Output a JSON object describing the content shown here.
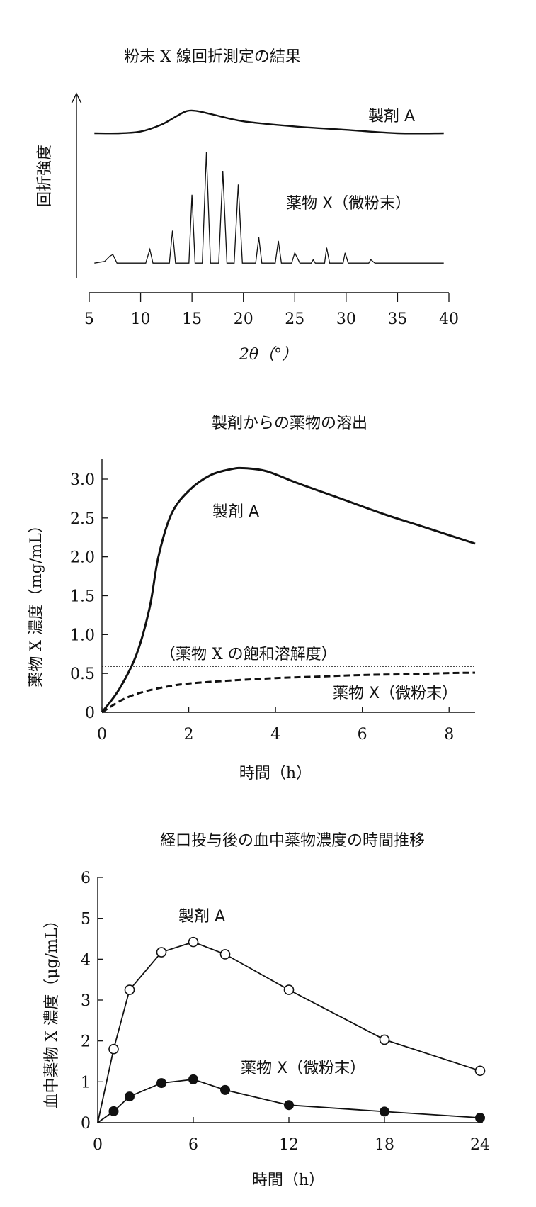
{
  "chart_data": [
    {
      "type": "line",
      "title": "粉末 X 線回折測定の結果",
      "xlabel": "2θ（°）",
      "ylabel": "回折強度",
      "xlim": [
        5,
        40
      ],
      "xticks": [
        "5",
        "10",
        "15",
        "20",
        "25",
        "30",
        "35",
        "40"
      ],
      "yticks": [],
      "y_axis_arrow": true,
      "grid": false,
      "series": [
        {
          "name": "製剤 A",
          "x": [
            5.5,
            8,
            10,
            12,
            13.5,
            14.5,
            15.5,
            17,
            20,
            25,
            30,
            35,
            39.5
          ],
          "y": [
            0.78,
            0.78,
            0.79,
            0.83,
            0.88,
            0.91,
            0.91,
            0.89,
            0.85,
            0.82,
            0.8,
            0.78,
            0.78
          ]
        },
        {
          "name": "薬物 X（微粉末）",
          "x": [
            5.5,
            6.5,
            7,
            7.3,
            7.7,
            10.5,
            10.9,
            11.2,
            12.8,
            13.1,
            13.4,
            14.7,
            15.0,
            15.3,
            16.0,
            16.4,
            16.8,
            17.6,
            18.0,
            18.4,
            19.1,
            19.5,
            19.9,
            21.2,
            21.5,
            21.8,
            23.1,
            23.4,
            23.7,
            24.7,
            25.0,
            25.5,
            26.6,
            26.8,
            27.0,
            27.9,
            28.1,
            28.4,
            29.7,
            29.9,
            30.2,
            32.2,
            32.4,
            32.8,
            34.6,
            34.8,
            35.0,
            39.5
          ],
          "y": [
            0.02,
            0.03,
            0.06,
            0.07,
            0.02,
            0.02,
            0.1,
            0.02,
            0.02,
            0.21,
            0.02,
            0.02,
            0.42,
            0.02,
            0.02,
            0.67,
            0.02,
            0.02,
            0.56,
            0.02,
            0.02,
            0.48,
            0.02,
            0.02,
            0.17,
            0.02,
            0.02,
            0.15,
            0.02,
            0.02,
            0.08,
            0.02,
            0.02,
            0.04,
            0.02,
            0.02,
            0.11,
            0.02,
            0.02,
            0.08,
            0.02,
            0.02,
            0.04,
            0.02,
            0.02,
            0.02,
            0.02,
            0.02
          ]
        }
      ]
    },
    {
      "type": "line",
      "title": "製剤からの薬物の溶出",
      "xlabel": "時間（h）",
      "ylabel": "薬物 X 濃度（mg/mL）",
      "xlim": [
        0,
        8.6
      ],
      "ylim": [
        0,
        3.3
      ],
      "xticks": [
        "0",
        "2",
        "4",
        "6",
        "8"
      ],
      "yticks": [
        "0",
        "0.5",
        "1.0",
        "1.5",
        "2.0",
        "2.5",
        "3.0"
      ],
      "grid": false,
      "reference_line": {
        "y": 0.59,
        "label": "（薬物 X の飽和溶解度）",
        "style": "dotted"
      },
      "series": [
        {
          "name": "製剤 A",
          "style": "solid",
          "x": [
            0,
            0.4,
            0.8,
            1.1,
            1.3,
            1.6,
            2.0,
            2.5,
            3.0,
            3.3,
            3.8,
            4.5,
            5.5,
            6.5,
            7.5,
            8.6
          ],
          "y": [
            0,
            0.3,
            0.75,
            1.35,
            2.0,
            2.55,
            2.85,
            3.05,
            3.13,
            3.14,
            3.1,
            2.95,
            2.75,
            2.55,
            2.37,
            2.17
          ]
        },
        {
          "name": "薬物 X（微粉末）",
          "style": "dashed",
          "x": [
            0,
            0.5,
            1.0,
            1.5,
            2.0,
            3.0,
            4.0,
            5.0,
            6.0,
            7.0,
            8.0,
            8.6
          ],
          "y": [
            0,
            0.17,
            0.27,
            0.33,
            0.37,
            0.41,
            0.44,
            0.46,
            0.48,
            0.49,
            0.505,
            0.51
          ]
        }
      ]
    },
    {
      "type": "line",
      "title": "経口投与後の血中薬物濃度の時間推移",
      "xlabel": "時間（h）",
      "ylabel": "血中薬物 X 濃度（μg/mL）",
      "xlim": [
        0,
        24
      ],
      "ylim": [
        0,
        6
      ],
      "xticks": [
        "0",
        "6",
        "12",
        "18",
        "24"
      ],
      "yticks": [
        "0",
        "1",
        "2",
        "3",
        "4",
        "5",
        "6"
      ],
      "grid": false,
      "series": [
        {
          "name": "製剤 A",
          "marker": "open-circle",
          "x": [
            0,
            1,
            2,
            4,
            6,
            8,
            12,
            18,
            24
          ],
          "y": [
            0,
            1.8,
            3.25,
            4.17,
            4.42,
            4.12,
            3.25,
            2.03,
            1.27
          ]
        },
        {
          "name": "薬物 X（微粉末）",
          "marker": "filled-circle",
          "x": [
            0,
            1,
            2,
            4,
            6,
            8,
            12,
            18,
            24
          ],
          "y": [
            0,
            0.28,
            0.64,
            0.97,
            1.06,
            0.8,
            0.43,
            0.27,
            0.12
          ]
        }
      ]
    }
  ]
}
